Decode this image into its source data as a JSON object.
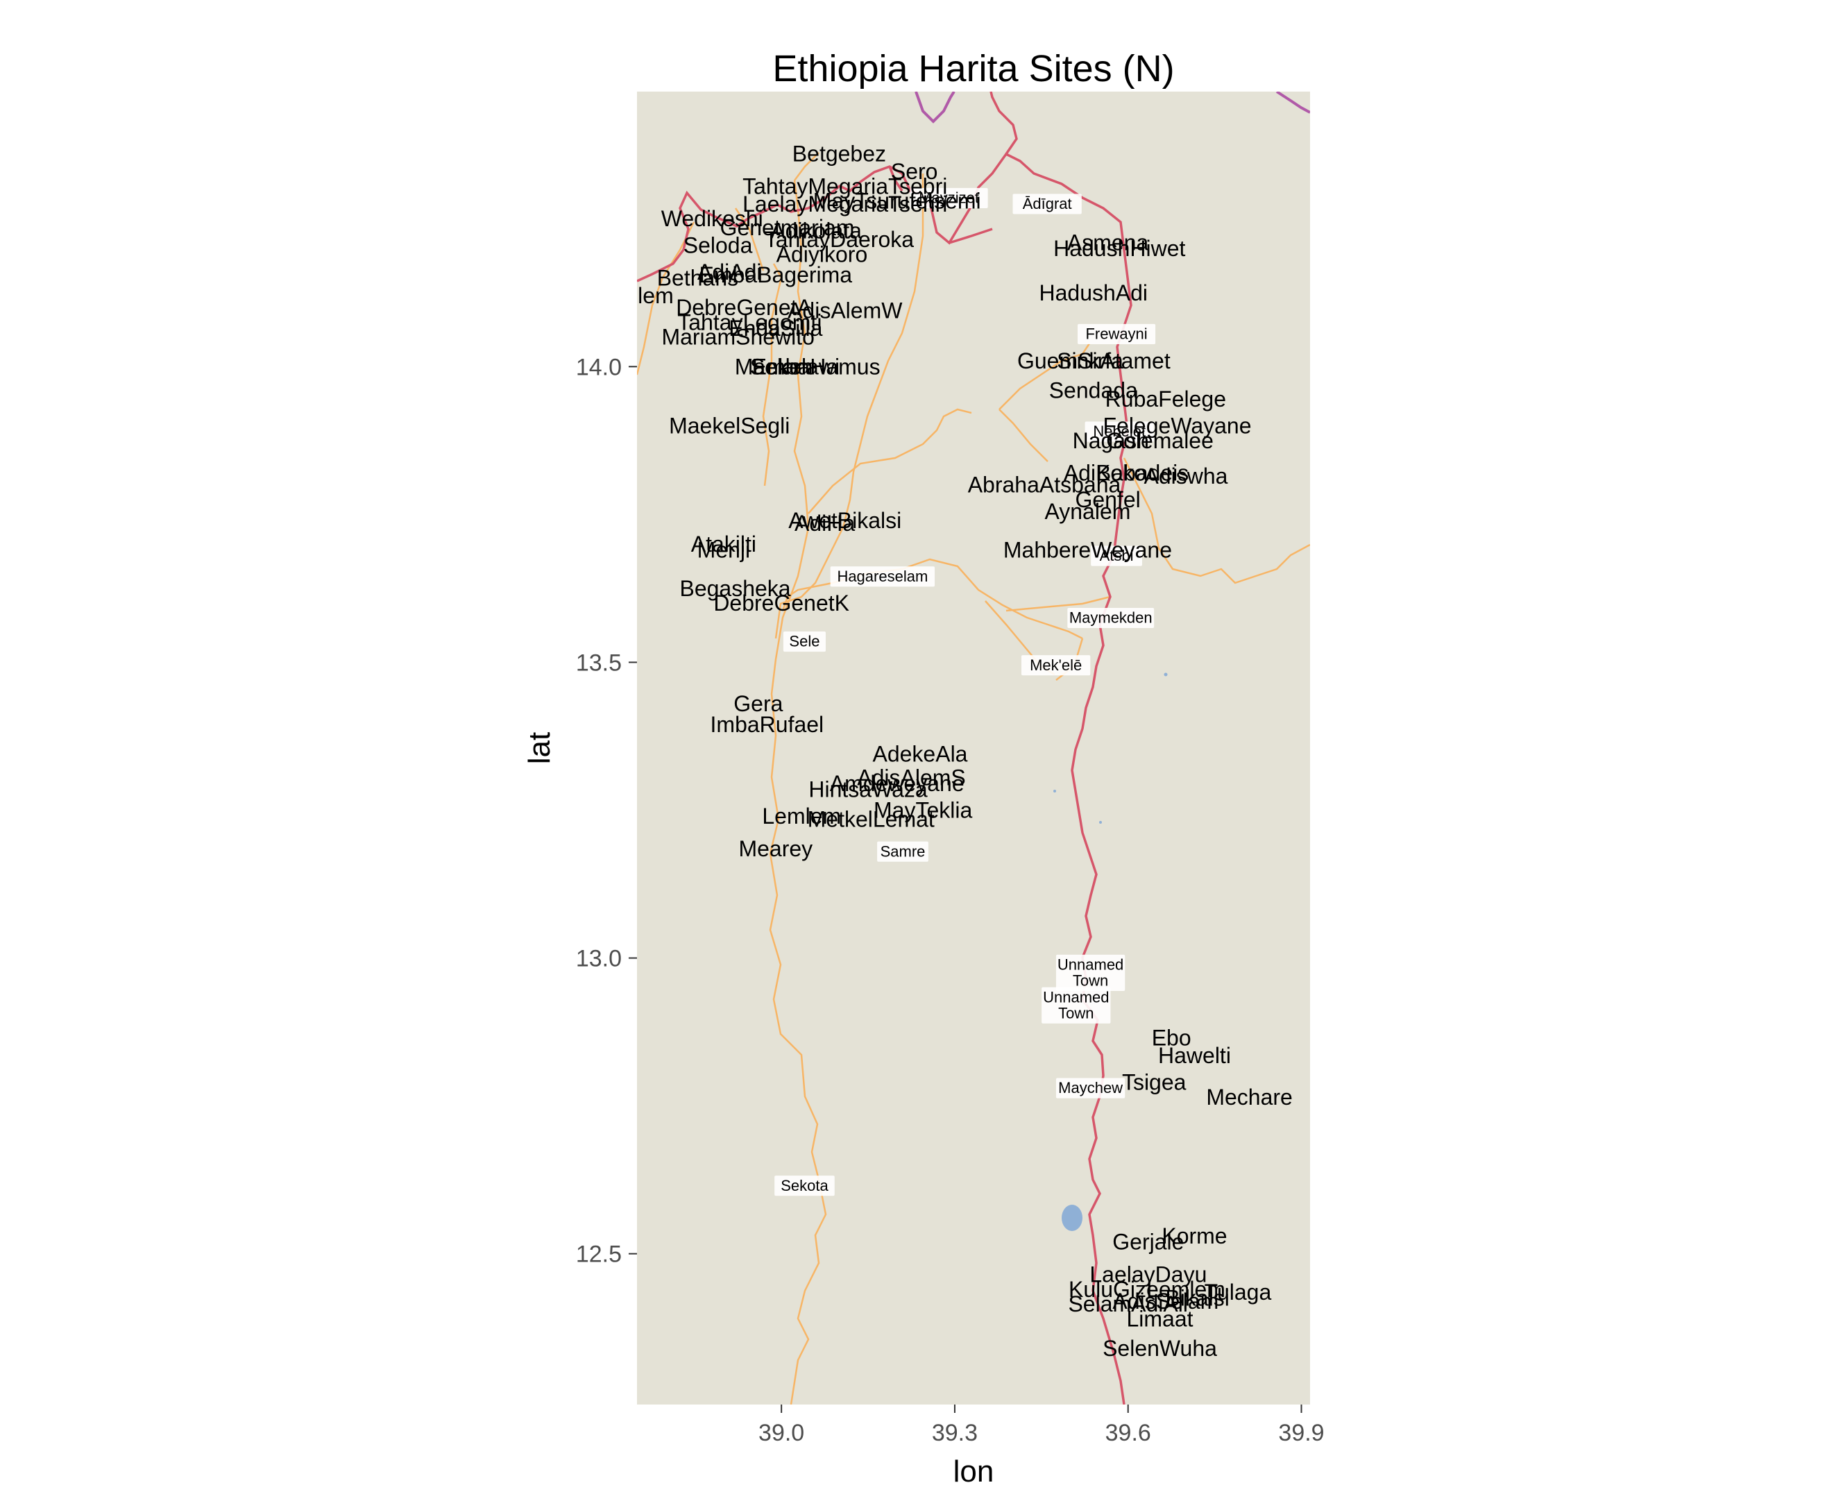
{
  "title": "Ethiopia Harita Sites (N)",
  "xlabel": "lon",
  "ylabel": "lat",
  "xlim": [
    38.75,
    39.915
  ],
  "ylim": [
    12.245,
    14.465
  ],
  "x_ticks": [
    {
      "value": 39.0,
      "label": "39.0"
    },
    {
      "value": 39.3,
      "label": "39.3"
    },
    {
      "value": 39.6,
      "label": "39.6"
    },
    {
      "value": 39.9,
      "label": "39.9"
    }
  ],
  "y_ticks": [
    {
      "value": 12.5,
      "label": "12.5"
    },
    {
      "value": 13.0,
      "label": "13.0"
    },
    {
      "value": 13.5,
      "label": "13.5"
    },
    {
      "value": 14.0,
      "label": "14.0"
    }
  ],
  "colors": {
    "land": "#e4e2d6",
    "primary_road": "#d6566a",
    "secondary_road": "#f7b566",
    "border": "#b05aa8",
    "water": "#8fb0d6",
    "site_text": "#000000",
    "axis_text": "#4d4d4d"
  },
  "map_towns": [
    {
      "label": "Ādīgrat",
      "lon": 39.46,
      "lat": 14.275
    },
    {
      "label": "Frewayni",
      "lon": 39.58,
      "lat": 14.055
    },
    {
      "label": "Hagareselam",
      "lon": 39.175,
      "lat": 13.645
    },
    {
      "label": "Maymekden",
      "lon": 39.57,
      "lat": 13.575
    },
    {
      "label": "Sele",
      "lon": 39.04,
      "lat": 13.535
    },
    {
      "label": "Mek'elē",
      "lon": 39.475,
      "lat": 13.495
    },
    {
      "label": "Samre",
      "lon": 39.21,
      "lat": 13.18
    },
    {
      "label": "Unnamed Town",
      "lon": 39.535,
      "lat": 12.975
    },
    {
      "label": "Unnamed Town",
      "lon": 39.51,
      "lat": 12.92
    },
    {
      "label": "Maychew",
      "lon": 39.535,
      "lat": 12.78
    },
    {
      "label": "Sekota",
      "lon": 39.04,
      "lat": 12.615
    },
    {
      "label": "Nebelet",
      "lon": 39.585,
      "lat": 13.89
    },
    {
      "label": "Atsbi",
      "lon": 39.58,
      "lat": 13.68
    },
    {
      "label": "Mayzizet",
      "lon": 39.29,
      "lat": 14.285
    }
  ],
  "chart_data": {
    "type": "scatter",
    "title": "Ethiopia Harita Sites (N)",
    "xlabel": "lon",
    "ylabel": "lat",
    "xlim": [
      38.75,
      39.915
    ],
    "ylim": [
      12.245,
      14.465
    ],
    "grid": false,
    "points": [
      {
        "label": "Betgebez",
        "lon": 39.1,
        "lat": 14.36
      },
      {
        "label": "Sero",
        "lon": 39.23,
        "lat": 14.33
      },
      {
        "label": "TahtayMegariaTsebri",
        "lon": 39.11,
        "lat": 14.305
      },
      {
        "label": "LaelayMegariaTsehri",
        "lon": 39.11,
        "lat": 14.275
      },
      {
        "label": "MayTsurufetsemi",
        "lon": 39.2,
        "lat": 14.28
      },
      {
        "label": "Wedikeshi",
        "lon": 38.88,
        "lat": 14.25
      },
      {
        "label": "Genetmariam",
        "lon": 39.01,
        "lat": 14.235
      },
      {
        "label": "Adikolata",
        "lon": 39.06,
        "lat": 14.23
      },
      {
        "label": "TahtayDaeroka",
        "lon": 39.1,
        "lat": 14.215
      },
      {
        "label": "Seloda",
        "lon": 38.89,
        "lat": 14.205
      },
      {
        "label": "Adiyikoro",
        "lon": 39.07,
        "lat": 14.19
      },
      {
        "label": "EmbaBagerima",
        "lon": 38.99,
        "lat": 14.155
      },
      {
        "label": "AdiAdi",
        "lon": 38.91,
        "lat": 14.16
      },
      {
        "label": "Bethans",
        "lon": 38.855,
        "lat": 14.15
      },
      {
        "label": "Lemlem",
        "lon": 38.745,
        "lat": 14.12
      },
      {
        "label": "DebreGenetA",
        "lon": 38.935,
        "lat": 14.1
      },
      {
        "label": "AdisAlemW",
        "lon": 39.11,
        "lat": 14.095
      },
      {
        "label": "TahtayLegomti",
        "lon": 38.945,
        "lat": 14.075
      },
      {
        "label": "EndaSilla",
        "lon": 38.99,
        "lat": 14.065
      },
      {
        "label": "MariamShewito",
        "lon": 38.925,
        "lat": 14.05
      },
      {
        "label": "Selam",
        "lon": 39.0,
        "lat": 14.0
      },
      {
        "label": "EmbaHamus",
        "lon": 39.06,
        "lat": 14.0
      },
      {
        "label": "Maekelawi",
        "lon": 39.01,
        "lat": 14.0
      },
      {
        "label": "MaekelSegli",
        "lon": 38.91,
        "lat": 13.9
      },
      {
        "label": "GuemSirfa",
        "lon": 39.5,
        "lat": 14.01
      },
      {
        "label": "SinkAtamet",
        "lon": 39.575,
        "lat": 14.01
      },
      {
        "label": "HadushHiwet",
        "lon": 39.585,
        "lat": 14.2
      },
      {
        "label": "Asmena",
        "lon": 39.565,
        "lat": 14.21
      },
      {
        "label": "HadushAdi",
        "lon": 39.54,
        "lat": 14.125
      },
      {
        "label": "Sendada",
        "lon": 39.54,
        "lat": 13.96
      },
      {
        "label": "RubaFelege",
        "lon": 39.665,
        "lat": 13.945
      },
      {
        "label": "FelegeWayane",
        "lon": 39.685,
        "lat": 13.9
      },
      {
        "label": "Nagash",
        "lon": 39.57,
        "lat": 13.875
      },
      {
        "label": "Golemalee",
        "lon": 39.655,
        "lat": 13.875
      },
      {
        "label": "AdiKoko",
        "lon": 39.56,
        "lat": 13.82
      },
      {
        "label": "Babadeis",
        "lon": 39.625,
        "lat": 13.82
      },
      {
        "label": "Adiswha",
        "lon": 39.7,
        "lat": 13.815
      },
      {
        "label": "AbrahaAtsbaha",
        "lon": 39.455,
        "lat": 13.8
      },
      {
        "label": "Genfel",
        "lon": 39.565,
        "lat": 13.775
      },
      {
        "label": "Aynalem",
        "lon": 39.53,
        "lat": 13.755
      },
      {
        "label": "MahbereWeyane",
        "lon": 39.53,
        "lat": 13.69
      },
      {
        "label": "AwetBikalsi",
        "lon": 39.11,
        "lat": 13.74
      },
      {
        "label": "AdiHa",
        "lon": 39.075,
        "lat": 13.735
      },
      {
        "label": "Atakilti",
        "lon": 38.9,
        "lat": 13.7
      },
      {
        "label": "Menji",
        "lon": 38.9,
        "lat": 13.69
      },
      {
        "label": "Begasheka",
        "lon": 38.92,
        "lat": 13.625
      },
      {
        "label": "DebreGenetK",
        "lon": 39.0,
        "lat": 13.6
      },
      {
        "label": "Gera",
        "lon": 38.96,
        "lat": 13.43
      },
      {
        "label": "ImbaRufael",
        "lon": 38.975,
        "lat": 13.395
      },
      {
        "label": "AdekeAla",
        "lon": 39.24,
        "lat": 13.345
      },
      {
        "label": "AdisAlemS",
        "lon": 39.225,
        "lat": 13.305
      },
      {
        "label": "Amdeweyane",
        "lon": 39.2,
        "lat": 13.295
      },
      {
        "label": "HintsaWaza",
        "lon": 39.15,
        "lat": 13.285
      },
      {
        "label": "MayTeklia",
        "lon": 39.245,
        "lat": 13.25
      },
      {
        "label": "Lemlem",
        "lon": 39.035,
        "lat": 13.24
      },
      {
        "label": "MetkelLemat",
        "lon": 39.155,
        "lat": 13.235
      },
      {
        "label": "Mearey",
        "lon": 38.99,
        "lat": 13.185
      },
      {
        "label": "Ebo",
        "lon": 39.675,
        "lat": 12.865
      },
      {
        "label": "Hawelti",
        "lon": 39.715,
        "lat": 12.835
      },
      {
        "label": "Tsigea",
        "lon": 39.645,
        "lat": 12.79
      },
      {
        "label": "Mechare",
        "lon": 39.81,
        "lat": 12.765
      },
      {
        "label": "Gerjale",
        "lon": 39.635,
        "lat": 12.52
      },
      {
        "label": "Korme",
        "lon": 39.715,
        "lat": 12.53
      },
      {
        "label": "LaelayDayu",
        "lon": 39.635,
        "lat": 12.465
      },
      {
        "label": "KuluGize",
        "lon": 39.575,
        "lat": 12.44
      },
      {
        "label": "Lemlem",
        "lon": 39.7,
        "lat": 12.44
      },
      {
        "label": "Tulaga",
        "lon": 39.79,
        "lat": 12.435
      },
      {
        "label": "SelamAdiAli",
        "lon": 39.6,
        "lat": 12.415
      },
      {
        "label": "AdisSelam",
        "lon": 39.665,
        "lat": 12.42
      },
      {
        "label": "Bikalsi",
        "lon": 39.72,
        "lat": 12.425
      },
      {
        "label": "Limaat",
        "lon": 39.655,
        "lat": 12.39
      },
      {
        "label": "SelenWuha",
        "lon": 39.655,
        "lat": 12.34
      }
    ]
  }
}
